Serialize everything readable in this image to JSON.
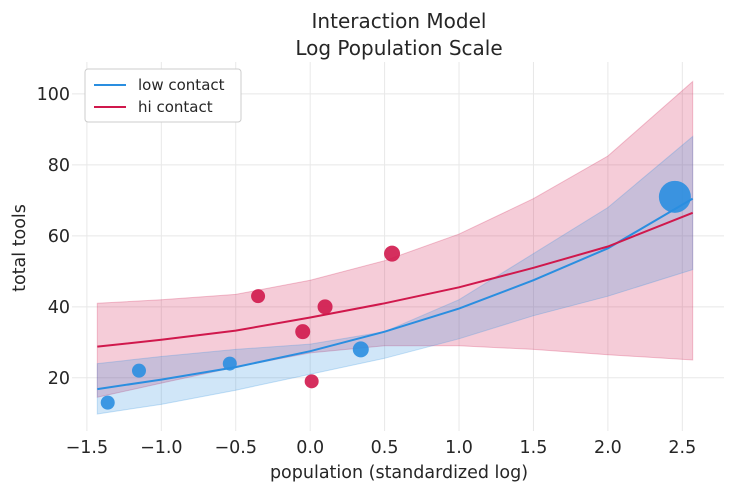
{
  "chart_data": {
    "type": "line",
    "title": [
      "Interaction Model",
      "Log Population Scale"
    ],
    "xlabel": "population (standardized log)",
    "ylabel": "total tools",
    "xlim": [
      -1.6,
      2.78
    ],
    "ylim": [
      5,
      109
    ],
    "xticks": [
      -1.5,
      -1.0,
      -0.5,
      0.0,
      0.5,
      1.0,
      1.5,
      2.0,
      2.5
    ],
    "xtick_labels": [
      "−1.5",
      "−1.0",
      "−0.5",
      "0.0",
      "0.5",
      "1.0",
      "1.5",
      "2.0",
      "2.5"
    ],
    "yticks": [
      20,
      40,
      60,
      80,
      100
    ],
    "ytick_labels": [
      "20",
      "40",
      "60",
      "80",
      "100"
    ],
    "grid": true,
    "legend_position": "top-left",
    "series": [
      {
        "name": "low contact",
        "color": "#2a8ee0",
        "x": [
          -1.43,
          -1.0,
          -0.5,
          0.0,
          0.5,
          1.0,
          1.5,
          2.0,
          2.57
        ],
        "y": [
          16.8,
          19.5,
          23.0,
          27.5,
          33.0,
          39.5,
          47.5,
          56.5,
          70.5
        ],
        "band_lower": [
          9.8,
          12.5,
          16.5,
          21.0,
          25.5,
          31.0,
          37.5,
          43.0,
          50.5
        ],
        "band_upper": [
          24.0,
          26.0,
          28.0,
          29.5,
          33.0,
          42.0,
          55.0,
          68.0,
          88.0
        ]
      },
      {
        "name": "hi contact",
        "color": "#d0184c",
        "x": [
          -1.43,
          -1.0,
          -0.5,
          0.0,
          0.5,
          1.0,
          1.5,
          2.0,
          2.57
        ],
        "y": [
          28.8,
          30.7,
          33.3,
          37.0,
          41.0,
          45.5,
          51.0,
          57.0,
          66.5
        ],
        "band_lower": [
          14.5,
          18.5,
          23.0,
          27.0,
          29.0,
          29.0,
          28.0,
          26.5,
          25.0
        ],
        "band_upper": [
          41.0,
          42.0,
          43.5,
          47.5,
          53.0,
          60.5,
          70.5,
          82.5,
          103.5
        ]
      }
    ],
    "points": [
      {
        "x": -1.36,
        "y": 13,
        "contact": "low",
        "size": 7
      },
      {
        "x": -1.15,
        "y": 22,
        "contact": "low",
        "size": 7
      },
      {
        "x": -0.54,
        "y": 24,
        "contact": "low",
        "size": 7
      },
      {
        "x": -0.35,
        "y": 43,
        "contact": "hi",
        "size": 7
      },
      {
        "x": -0.05,
        "y": 33,
        "contact": "hi",
        "size": 7.5
      },
      {
        "x": 0.01,
        "y": 19,
        "contact": "hi",
        "size": 7
      },
      {
        "x": 0.1,
        "y": 40,
        "contact": "hi",
        "size": 7.5
      },
      {
        "x": 0.34,
        "y": 28,
        "contact": "low",
        "size": 8
      },
      {
        "x": 0.55,
        "y": 55,
        "contact": "hi",
        "size": 8
      },
      {
        "x": 2.45,
        "y": 71,
        "contact": "low",
        "size": 16
      }
    ]
  }
}
